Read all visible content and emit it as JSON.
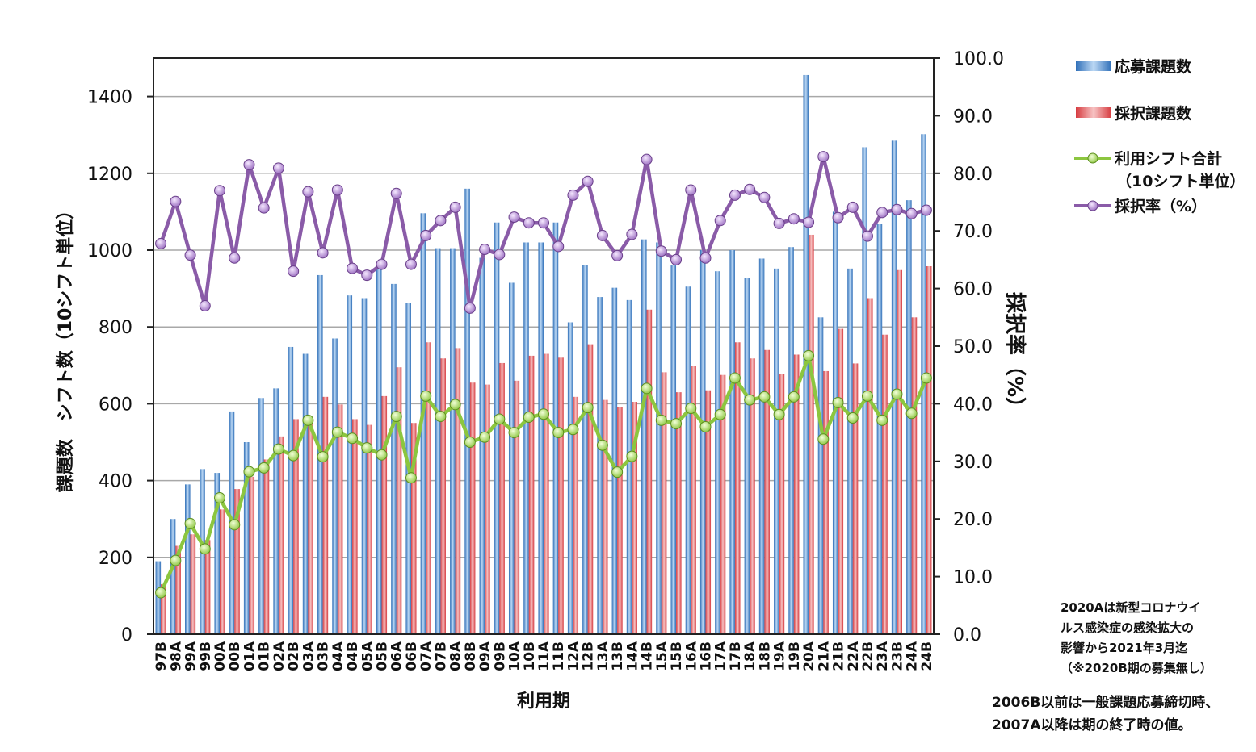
{
  "chart_data": {
    "type": "bar",
    "xlabel": "利用期",
    "ylabel_left": "課題数　シフト数（10シフト単位）",
    "ylabel_right": "採択率（%）",
    "ylim_left": [
      0,
      1500
    ],
    "ylim_right": [
      0,
      100
    ],
    "yticks_left": [
      "0",
      "200",
      "400",
      "600",
      "800",
      "1000",
      "1200",
      "1400"
    ],
    "yticks_right": [
      "0.0",
      "10.0",
      "20.0",
      "30.0",
      "40.0",
      "50.0",
      "60.0",
      "70.0",
      "80.0",
      "90.0",
      "100.0"
    ],
    "grid": true,
    "legend_position": "right",
    "categories": [
      "97B",
      "98A",
      "99A",
      "99B",
      "00A",
      "00B",
      "01A",
      "01B",
      "02A",
      "02B",
      "03A",
      "03B",
      "04A",
      "04B",
      "05A",
      "05B",
      "06A",
      "06B",
      "07A",
      "07B",
      "08A",
      "08B",
      "09A",
      "09B",
      "10A",
      "10B",
      "11A",
      "11B",
      "12A",
      "12B",
      "13A",
      "13B",
      "14A",
      "14B",
      "15A",
      "15B",
      "16A",
      "16B",
      "17A",
      "17B",
      "18A",
      "18B",
      "19A",
      "19B",
      "20A",
      "21A",
      "21B",
      "22A",
      "22B",
      "23A",
      "23B",
      "24A",
      "24B"
    ],
    "series": [
      {
        "name": "応募課題数",
        "axis": "left",
        "kind": "bar",
        "color": "#4a90d9",
        "values": [
          190,
          300,
          390,
          430,
          420,
          580,
          500,
          615,
          640,
          748,
          730,
          935,
          770,
          882,
          875,
          960,
          912,
          862,
          1096,
          1005,
          1005,
          1160,
          980,
          1072,
          915,
          1020,
          1020,
          1072,
          812,
          962,
          878,
          902,
          870,
          1028,
          1020,
          960,
          905,
          1000,
          945,
          1000,
          928,
          978,
          952,
          1008,
          1456,
          825,
          1100,
          952,
          1268,
          1068,
          1285,
          1130,
          1302
        ]
      },
      {
        "name": "採択課題数",
        "axis": "left",
        "kind": "bar",
        "color": "#e8575a",
        "values": [
          130,
          230,
          260,
          245,
          325,
          378,
          410,
          455,
          515,
          560,
          560,
          618,
          598,
          560,
          545,
          620,
          695,
          550,
          760,
          718,
          745,
          655,
          650,
          706,
          660,
          725,
          730,
          720,
          618,
          755,
          610,
          592,
          605,
          845,
          682,
          630,
          698,
          635,
          675,
          760,
          718,
          740,
          678,
          728,
          1040,
          685,
          795,
          705,
          875,
          780,
          948,
          825,
          958
        ]
      },
      {
        "name": "利用シフト合計",
        "name2": "（10シフト単位）",
        "axis": "left",
        "kind": "line",
        "color": "#8cc63f",
        "values": [
          108,
          192,
          288,
          222,
          355,
          285,
          423,
          433,
          482,
          465,
          557,
          462,
          526,
          510,
          485,
          467,
          567,
          407,
          620,
          567,
          598,
          500,
          513,
          560,
          525,
          565,
          573,
          525,
          533,
          590,
          492,
          422,
          463,
          640,
          557,
          548,
          588,
          540,
          572,
          667,
          610,
          618,
          572,
          618,
          725,
          508,
          603,
          563,
          620,
          557,
          625,
          575,
          667
        ]
      },
      {
        "name": "採択率",
        "name2": "（%）",
        "axis": "right",
        "kind": "line",
        "color": "#8a5ba8",
        "values": [
          67.8,
          75.1,
          65.8,
          57.0,
          77.0,
          65.3,
          81.5,
          74.0,
          80.9,
          63.0,
          76.8,
          66.2,
          77.1,
          63.5,
          62.3,
          64.2,
          76.5,
          64.2,
          69.2,
          71.8,
          74.1,
          56.6,
          66.8,
          65.9,
          72.4,
          71.4,
          71.4,
          67.3,
          76.2,
          78.6,
          69.2,
          65.7,
          69.4,
          82.4,
          66.5,
          65.0,
          77.1,
          65.3,
          71.8,
          76.2,
          77.2,
          75.8,
          71.3,
          72.1,
          71.5,
          82.9,
          72.3,
          74.1,
          69.1,
          73.2,
          73.7,
          73.0,
          73.6
        ]
      }
    ],
    "notes": [
      "2020Aは新型コロナウイ",
      "ルス感染症の感染拡大の",
      "影響から2021年3月迄",
      "（※2020B期の募集無し）"
    ],
    "notes2": [
      "2006B以前は一般課題応募締切時、",
      "2007A以降は期の終了時の値。"
    ]
  }
}
